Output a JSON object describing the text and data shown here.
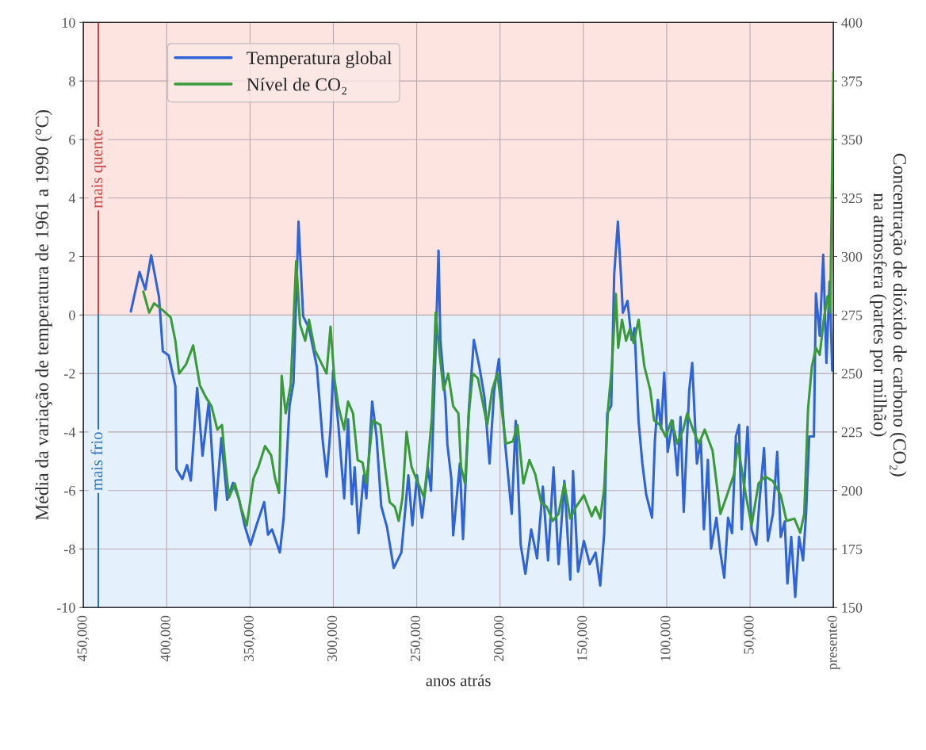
{
  "chart_data": {
    "type": "line",
    "xlabel": "anos atrás",
    "ylabel": "Média da variação de temperatura de 1961 a 1990 (°C)",
    "y2label": "Concentração de dióxido de carbono (CO₂)\nna atmosfera (partes por milhão)",
    "xlim": [
      450000,
      0
    ],
    "xticks": [
      {
        "value": 450000,
        "label": "450,000"
      },
      {
        "value": 400000,
        "label": "400,000"
      },
      {
        "value": 350000,
        "label": "350,000"
      },
      {
        "value": 300000,
        "label": "300,000"
      },
      {
        "value": 250000,
        "label": "250,000"
      },
      {
        "value": 200000,
        "label": "200,000"
      },
      {
        "value": 150000,
        "label": "150,000"
      },
      {
        "value": 100000,
        "label": "100,000"
      },
      {
        "value": 50000,
        "label": "50,000"
      },
      {
        "value": 0,
        "label": "presente0"
      }
    ],
    "ylim": [
      -10,
      10
    ],
    "yticks": [
      -10,
      -8,
      -6,
      -4,
      -2,
      0,
      2,
      4,
      6,
      8,
      10
    ],
    "y2lim": [
      150,
      400
    ],
    "y2ticks": [
      150,
      175,
      200,
      225,
      250,
      275,
      300,
      325,
      350,
      375,
      400
    ],
    "grid": true,
    "legend": "top left",
    "bands": [
      {
        "axis": "y",
        "from": 0,
        "to": 10,
        "label": "mais quente",
        "color": "#fde4e0"
      },
      {
        "axis": "y",
        "from": -10,
        "to": 0,
        "label": "mais frio",
        "color": "#e4f0fb"
      }
    ],
    "series": [
      {
        "name": "Temperatura global",
        "color": "#2f63d6",
        "x": [
          421500,
          416300,
          412800,
          409300,
          404600,
          402300,
          398800,
          394800,
          394100,
          390600,
          387800,
          385500,
          381700,
          378500,
          374700,
          370700,
          367200,
          363700,
          360200,
          356700,
          353200,
          349700,
          346200,
          341500,
          339200,
          336800,
          332100,
          329800,
          326300,
          323900,
          320900,
          318100,
          314600,
          309900,
          306400,
          304000,
          301700,
          300100,
          297000,
          293500,
          291200,
          288900,
          287200,
          284900,
          281800,
          280200,
          276700,
          274100,
          271300,
          267800,
          263800,
          259200,
          255000,
          252600,
          249800,
          246800,
          243300,
          241400,
          239000,
          236900,
          235800,
          232700,
          231600,
          229200,
          228100,
          224100,
          222200,
          218700,
          215700,
          212400,
          209300,
          206300,
          203500,
          200700,
          196900,
          193000,
          190600,
          187600,
          184800,
          181300,
          177800,
          174300,
          171200,
          167900,
          164900,
          161400,
          157900,
          156200,
          153200,
          149700,
          146200,
          142700,
          139900,
          137500,
          135700,
          133300,
          131500,
          129300,
          127500,
          126300,
          123500,
          121100,
          119300,
          116900,
          114600,
          112300,
          108800,
          107100,
          105300,
          103400,
          101500,
          99400,
          96400,
          93600,
          91700,
          89800,
          86500,
          84700,
          81900,
          79500,
          77700,
          75300,
          73400,
          70200,
          67800,
          65500,
          63200,
          60800,
          58500,
          56600,
          55000,
          51500,
          49100,
          46300,
          44400,
          41600,
          39300,
          36300,
          33700,
          31600,
          29200,
          27600,
          25300,
          22900,
          20600,
          18200,
          16400,
          14500,
          11700,
          10500,
          8200,
          6100,
          4200,
          2300,
          700
        ],
        "values": [
          0.12,
          1.47,
          0.87,
          2.04,
          0.61,
          -1.24,
          -1.38,
          -2.43,
          -5.28,
          -5.61,
          -5.13,
          -5.66,
          -2.49,
          -4.81,
          -2.96,
          -6.67,
          -4.21,
          -6.32,
          -5.74,
          -6.27,
          -7.2,
          -7.86,
          -7.2,
          -6.4,
          -7.51,
          -7.33,
          -8.12,
          -6.93,
          -3.1,
          -2.3,
          3.19,
          -0.05,
          -0.45,
          -1.77,
          -4.29,
          -5.53,
          -3.89,
          -1.9,
          -3.76,
          -6.27,
          -3.56,
          -6.47,
          -5.21,
          -7.46,
          -5.48,
          -6.27,
          -2.96,
          -4.15,
          -6.53,
          -7.26,
          -8.65,
          -8.12,
          -5.48,
          -7.2,
          -5.48,
          -6.93,
          -5.21,
          -6.01,
          -1.77,
          2.2,
          -0.85,
          -2.96,
          -4.42,
          -5.61,
          -7.53,
          -5.08,
          -7.66,
          -3.23,
          -0.85,
          -1.77,
          -2.83,
          -5.08,
          -2.57,
          -1.51,
          -4.42,
          -6.8,
          -3.62,
          -7.86,
          -8.85,
          -7.33,
          -8.32,
          -5.87,
          -8.39,
          -5.21,
          -8.52,
          -5.67,
          -9.05,
          -5.34,
          -8.78,
          -7.72,
          -8.52,
          -8.12,
          -9.25,
          -7.46,
          -3.36,
          -3.1,
          1.4,
          3.19,
          1.4,
          0.08,
          0.48,
          -0.85,
          -0.45,
          -3.62,
          -5.08,
          -6.14,
          -6.93,
          -4.29,
          -2.9,
          -3.89,
          -1.97,
          -4.68,
          -3.62,
          -5.48,
          -3.49,
          -6.73,
          -2.57,
          -1.64,
          -5.08,
          -4.29,
          -7.33,
          -4.95,
          -7.99,
          -6.93,
          -8.12,
          -8.98,
          -6.93,
          -7.46,
          -4.15,
          -3.76,
          -7.33,
          -3.82,
          -7.33,
          -7.86,
          -6.4,
          -4.55,
          -7.72,
          -6.8,
          -4.68,
          -7.59,
          -7.06,
          -9.18,
          -7.59,
          -9.64,
          -7.59,
          -8.39,
          -6.8,
          -4.15,
          -4.15,
          0.74,
          -0.71,
          2.06,
          -1.64,
          1.14,
          -1.9
        ]
      },
      {
        "name": "Nível de CO₂",
        "color": "#3a9a3a",
        "axis": "y2",
        "x": [
          414000,
          410500,
          407500,
          402300,
          397600,
          394800,
          392500,
          388300,
          384100,
          380100,
          376600,
          373100,
          369600,
          366800,
          364900,
          362600,
          359100,
          355500,
          352000,
          348000,
          345000,
          341000,
          337300,
          334900,
          332600,
          331000,
          328600,
          325600,
          322300,
          320000,
          316900,
          314600,
          311100,
          307600,
          304100,
          301700,
          299400,
          297000,
          293500,
          291200,
          288200,
          285400,
          282500,
          280200,
          276400,
          271800,
          269000,
          266200,
          263100,
          260800,
          258500,
          256100,
          253100,
          249100,
          245600,
          243300,
          240900,
          238600,
          236200,
          233900,
          231100,
          228100,
          225000,
          223400,
          221000,
          218700,
          216400,
          213300,
          210500,
          207700,
          204700,
          201600,
          196500,
          192300,
          189500,
          186000,
          182400,
          178900,
          175400,
          171900,
          168400,
          164900,
          161400,
          157900,
          154400,
          149700,
          145000,
          142700,
          139900,
          137500,
          135200,
          132900,
          130500,
          129100,
          126800,
          124400,
          122100,
          119800,
          116900,
          113400,
          109900,
          107600,
          104100,
          100600,
          97100,
          93600,
          90100,
          87700,
          84200,
          80700,
          77200,
          72500,
          67800,
          64300,
          59600,
          57300,
          53800,
          49100,
          44900,
          40900,
          36300,
          31600,
          28100,
          23400,
          19900,
          17500,
          15200,
          12900,
          10500,
          8200,
          5800,
          3500,
          1900,
          0
        ],
        "values": [
          285,
          276,
          280,
          277,
          274,
          264,
          250,
          254,
          262,
          245,
          240,
          236,
          226,
          228,
          212,
          197,
          203,
          193,
          185,
          205,
          210,
          219,
          215,
          205,
          199,
          249,
          233,
          245,
          298,
          271,
          264,
          273,
          260,
          255,
          250,
          270,
          248,
          236,
          226,
          238,
          233,
          213,
          212,
          203,
          230,
          228,
          210,
          195,
          193,
          187,
          197,
          225,
          210,
          203,
          197,
          212,
          231,
          276,
          258,
          243,
          250,
          236,
          233,
          210,
          203,
          233,
          250,
          248,
          238,
          228,
          243,
          250,
          220,
          221,
          228,
          203,
          213,
          207,
          195,
          193,
          187,
          190,
          203,
          188,
          193,
          198,
          189,
          193,
          188,
          201,
          235,
          253,
          284,
          261,
          273,
          264,
          269,
          263,
          273,
          253,
          243,
          230,
          228,
          223,
          230,
          220,
          226,
          233,
          226,
          220,
          226,
          217,
          190,
          197,
          207,
          220,
          203,
          185,
          203,
          206,
          204,
          198,
          187,
          188,
          182,
          190,
          235,
          253,
          261,
          258,
          273,
          283,
          276,
          379
        ]
      }
    ]
  }
}
